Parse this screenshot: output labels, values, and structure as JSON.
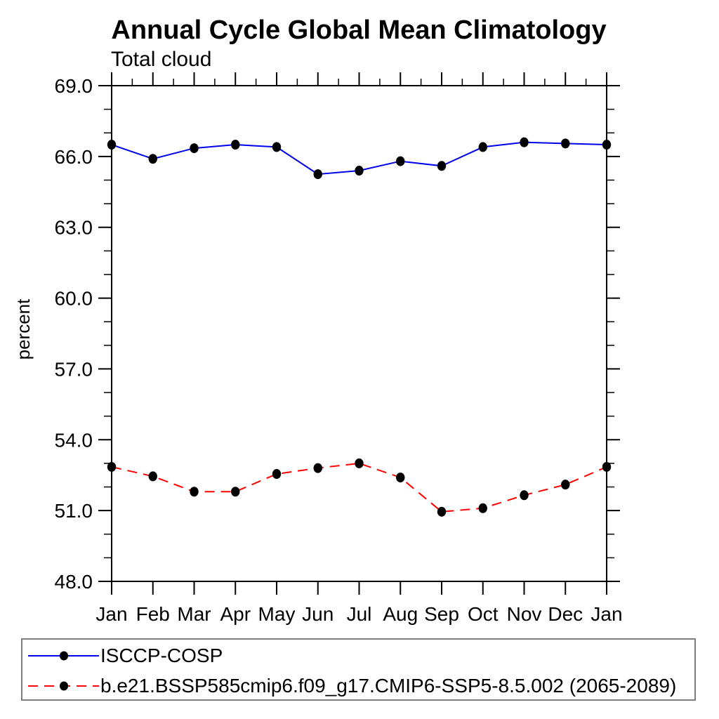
{
  "page": {
    "background_color": "#ffffff",
    "text_color": "#000000"
  },
  "chart_data": {
    "type": "line",
    "title": "Annual Cycle Global Mean Climatology",
    "subtitle": "Total cloud",
    "ylabel": "percent",
    "xlabel": "",
    "categories": [
      "Jan",
      "Feb",
      "Mar",
      "Apr",
      "May",
      "Jun",
      "Jul",
      "Aug",
      "Sep",
      "Oct",
      "Nov",
      "Dec",
      "Jan"
    ],
    "ylim": [
      48.0,
      69.0
    ],
    "ytick_major_interval": 3.0,
    "ytick_minor_interval": 1.0,
    "ytick_labels": [
      "48.0",
      "51.0",
      "54.0",
      "57.0",
      "60.0",
      "63.0",
      "66.0",
      "69.0"
    ],
    "grid": false,
    "legend_position": "bottom",
    "series": [
      {
        "name": "ISCCP-COSP",
        "color": "#0000ee",
        "line_style": "solid",
        "marker": "filled-circle",
        "marker_color": "#000000",
        "values": [
          66.5,
          65.9,
          66.35,
          66.5,
          66.4,
          65.25,
          65.4,
          65.8,
          65.6,
          66.4,
          66.6,
          66.55,
          66.5
        ]
      },
      {
        "name": "b.e21.BSSP585cmip6.f09_g17.CMIP6-SSP5-8.5.002 (2065-2089)",
        "color": "#ff0000",
        "line_style": "dashed",
        "marker": "filled-circle",
        "marker_color": "#000000",
        "values": [
          52.85,
          52.45,
          51.8,
          51.8,
          52.55,
          52.8,
          53.0,
          52.4,
          50.95,
          51.1,
          51.65,
          52.1,
          52.85
        ]
      }
    ]
  }
}
